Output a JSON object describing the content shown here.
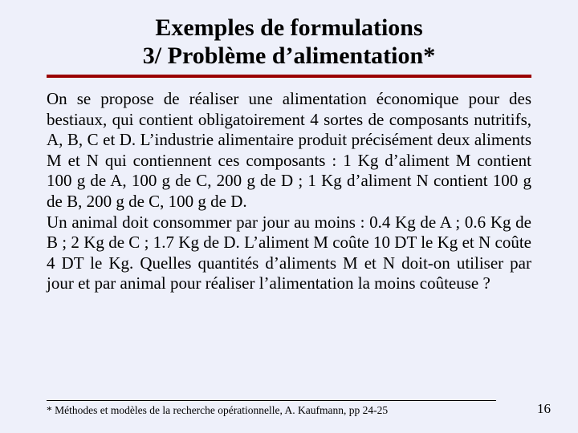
{
  "colors": {
    "background": "#eef0fa",
    "text": "#000000",
    "rule": "#9a0000"
  },
  "typography": {
    "family": "Times New Roman",
    "title_fontsize_pt": 30,
    "title_weight": "bold",
    "body_fontsize_pt": 21,
    "footnote_fontsize_pt": 13.5,
    "pagenum_fontsize_pt": 17
  },
  "title": {
    "line1": "Exemples de formulations",
    "line2": "3/ Problème d’alimentation*"
  },
  "body": {
    "text": "On se propose de réaliser une alimentation économique pour des bestiaux, qui contient obligatoirement 4 sortes de composants nutritifs, A, B, C et D. L’industrie alimentaire produit précisément deux aliments M et N qui contiennent ces composants : 1 Kg d’aliment M contient 100 g de A, 100 g de C, 200 g de D ; 1 Kg d’aliment N contient 100 g de B, 200 g de C, 100 g de D.\nUn animal doit consommer par jour au moins : 0.4 Kg de A ; 0.6 Kg de B ; 2 Kg de C ; 1.7 Kg de D. L’aliment M coûte 10 DT le Kg et N coûte 4 DT le Kg. Quelles quantités d’aliments M et N doit-on utiliser par jour et par animal pour réaliser l’alimentation la moins coûteuse ?"
  },
  "footer": {
    "footnote": "* Méthodes et modèles de la recherche opérationnelle, A. Kaufmann, pp 24-25",
    "page_number": "16"
  }
}
